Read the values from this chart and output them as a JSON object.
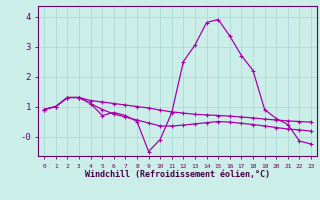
{
  "xlabel": "Windchill (Refroidissement éolien,°C)",
  "background_color": "#cceee8",
  "grid_color": "#aaddda",
  "line_color": "#aa00aa",
  "hours": [
    0,
    1,
    2,
    3,
    4,
    5,
    6,
    7,
    8,
    9,
    10,
    11,
    12,
    13,
    14,
    15,
    16,
    17,
    18,
    19,
    20,
    21,
    22,
    23
  ],
  "series1": [
    0.9,
    1.0,
    1.3,
    1.3,
    1.1,
    0.7,
    0.8,
    0.7,
    0.5,
    -0.5,
    -0.1,
    0.8,
    2.5,
    3.05,
    3.8,
    3.9,
    3.35,
    2.7,
    2.2,
    0.9,
    0.6,
    0.4,
    -0.15,
    -0.25
  ],
  "series2": [
    0.9,
    1.0,
    1.3,
    1.3,
    1.2,
    1.15,
    1.1,
    1.05,
    1.0,
    0.95,
    0.88,
    0.82,
    0.78,
    0.74,
    0.72,
    0.7,
    0.68,
    0.65,
    0.62,
    0.58,
    0.55,
    0.52,
    0.5,
    0.48
  ],
  "series3": [
    0.9,
    1.0,
    1.3,
    1.3,
    1.1,
    0.9,
    0.75,
    0.65,
    0.55,
    0.45,
    0.35,
    0.35,
    0.38,
    0.42,
    0.46,
    0.5,
    0.48,
    0.44,
    0.4,
    0.35,
    0.3,
    0.25,
    0.22,
    0.18
  ],
  "ylim": [
    -0.65,
    4.35
  ],
  "xlim": [
    -0.5,
    23.5
  ],
  "ytick_vals": [
    0,
    1,
    2,
    3,
    4
  ],
  "ytick_labels": [
    "-0",
    "1",
    "2",
    "3",
    "4"
  ],
  "marker": "+"
}
